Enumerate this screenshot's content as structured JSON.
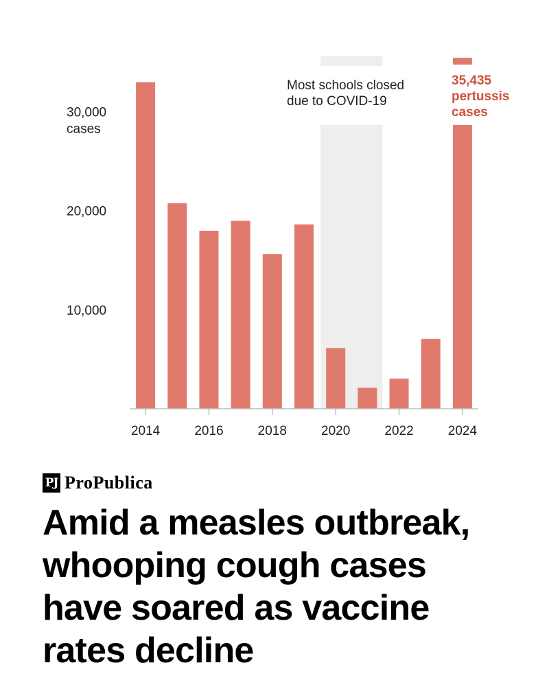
{
  "chart_data": {
    "type": "bar",
    "categories": [
      "2014",
      "2015",
      "2016",
      "2017",
      "2018",
      "2019",
      "2020",
      "2021",
      "2022",
      "2023",
      "2024"
    ],
    "values": [
      32971,
      20762,
      17972,
      18975,
      15609,
      18617,
      6124,
      2116,
      3044,
      7063,
      35435
    ],
    "ylim": [
      0,
      36000
    ],
    "y_ticks": [
      {
        "value": 10000,
        "label": "10,000"
      },
      {
        "value": 20000,
        "label": "20,000"
      },
      {
        "value": 30000,
        "label": "30,000"
      }
    ],
    "y_unit_label": "cases",
    "x_tick_labels": [
      "2014",
      "2016",
      "2018",
      "2020",
      "2022",
      "2024"
    ],
    "shaded_range": [
      "2020",
      "2021"
    ],
    "shade_annotation": [
      "Most schools closed",
      "due to COVID-19"
    ],
    "highlight_annotation": [
      "35,435",
      "pertussis",
      "cases"
    ],
    "bar_color": "#e07a6d",
    "shade_color": "#eeeeee",
    "highlight_text_color": "#c9553d"
  },
  "brand": {
    "mark": "PJ",
    "name": "ProPublica"
  },
  "headline": {
    "lines": [
      "Amid a measles outbreak,",
      "whooping cough cases",
      "have soared as vaccine",
      "rates decline"
    ]
  }
}
